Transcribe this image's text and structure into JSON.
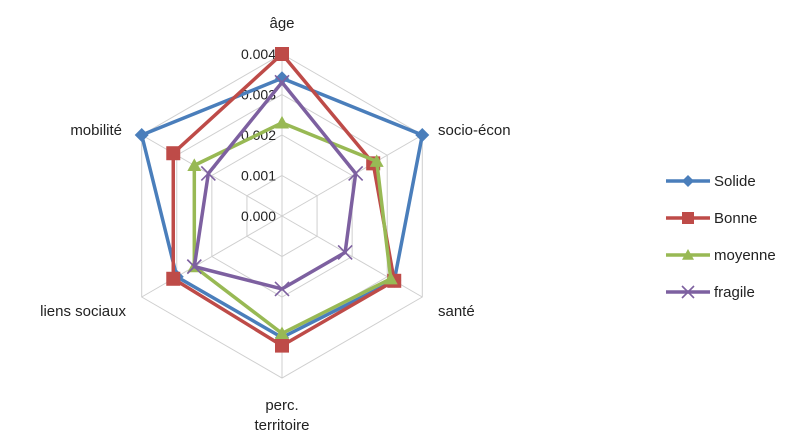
{
  "chart_data": {
    "type": "radar",
    "title": "",
    "axes": [
      "âge",
      "socio-écon",
      "santé",
      "perc. territoire",
      "liens sociaux",
      "mobilité"
    ],
    "ticks": [
      "0.000",
      "0.001",
      "0.002",
      "0.003",
      "0.004"
    ],
    "rmin": 0,
    "rmax": 0.004,
    "gridlines": true,
    "legend_position": "right",
    "series": [
      {
        "name": "Solide",
        "color": "#4a7ebb",
        "marker": "diamond",
        "values": [
          0.0034,
          0.004,
          0.0032,
          0.003,
          0.003,
          0.004
        ]
      },
      {
        "name": "Bonne",
        "color": "#be4b48",
        "marker": "square",
        "values": [
          0.004,
          0.0026,
          0.0032,
          0.0032,
          0.0031,
          0.0031
        ]
      },
      {
        "name": "moyenne",
        "color": "#98b954",
        "marker": "triangle",
        "values": [
          0.0023,
          0.0027,
          0.0031,
          0.0029,
          0.0025,
          0.0025
        ]
      },
      {
        "name": "fragile",
        "color": "#7d60a0",
        "marker": "x",
        "values": [
          0.0033,
          0.0021,
          0.0018,
          0.0018,
          0.0025,
          0.0021
        ]
      }
    ]
  }
}
